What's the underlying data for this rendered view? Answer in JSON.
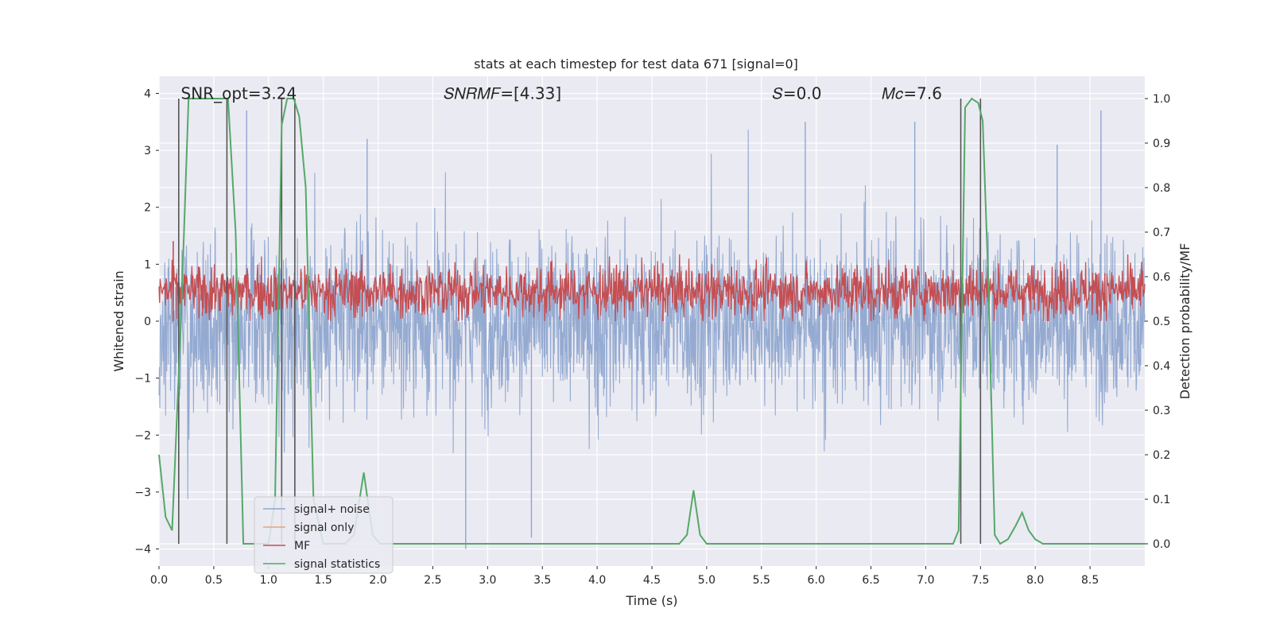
{
  "chart_data": {
    "type": "line",
    "title": "stats at each timestep for test data 671 [signal=0]",
    "xlabel": "Time (s)",
    "ylabel_left": "Whitened strain",
    "ylabel_right": "Detection probability/MF",
    "xlim": [
      0.0,
      9.0
    ],
    "ylim_left": [
      -4.3,
      4.3
    ],
    "ylim_right": [
      -0.05,
      1.05
    ],
    "xticks": [
      0.0,
      0.5,
      1.0,
      1.5,
      2.0,
      2.5,
      3.0,
      3.5,
      4.0,
      4.5,
      5.0,
      5.5,
      6.0,
      6.5,
      7.0,
      7.5,
      8.0,
      8.5
    ],
    "xtick_labels": [
      "0.0",
      "0.5",
      "1.0",
      "1.5",
      "2.0",
      "2.5",
      "3.0",
      "3.5",
      "4.0",
      "4.5",
      "5.0",
      "5.5",
      "6.0",
      "6.5",
      "7.0",
      "7.5",
      "8.0",
      "8.5"
    ],
    "yticks_left": [
      4,
      3,
      2,
      1,
      0,
      -1,
      -2,
      -3,
      -4
    ],
    "ytick_labels_left": [
      "4",
      "3",
      "2",
      "1",
      "0",
      "−1",
      "−2",
      "−3",
      "−4"
    ],
    "yticks_right": [
      1.0,
      0.9,
      0.8,
      0.7,
      0.6,
      0.5,
      0.4,
      0.3,
      0.2,
      0.1,
      0.0
    ],
    "ytick_labels_right": [
      "1.0",
      "0.9",
      "0.8",
      "0.7",
      "0.6",
      "0.5",
      "0.4",
      "0.3",
      "0.2",
      "0.1",
      "0.0"
    ],
    "grid": true,
    "legend_position": "bottom-left",
    "annotations": [
      {
        "text": "SNR_opt=3.24",
        "x": 0.2,
        "y": 4.0
      },
      {
        "text": "𝑆𝑁𝑅𝑀𝐹=[4.33]",
        "x": 2.6,
        "y": 4.0
      },
      {
        "text": "𝑆=0.0",
        "x": 5.6,
        "y": 4.0
      },
      {
        "text": "𝑀𝑐=7.6",
        "x": 6.6,
        "y": 4.0
      }
    ],
    "series": [
      {
        "name": "signal+ noise",
        "color": "#8fa6cf",
        "axis": "left",
        "kind": "noise",
        "description_range": [
          -3.2,
          3.3
        ],
        "peaks": [
          {
            "x": 0.8,
            "y": 3.7
          },
          {
            "x": 1.9,
            "y": 3.2
          },
          {
            "x": 2.8,
            "y": -4.0
          },
          {
            "x": 3.4,
            "y": -3.8
          },
          {
            "x": 5.9,
            "y": 3.5
          },
          {
            "x": 6.9,
            "y": 3.5
          },
          {
            "x": 8.2,
            "y": 3.1
          },
          {
            "x": 8.6,
            "y": 3.7
          }
        ]
      },
      {
        "name": "signal only",
        "color": "#e8a37f",
        "axis": "left",
        "values": []
      },
      {
        "name": "MF",
        "color": "#c44e52",
        "axis": "right",
        "kind": "noise",
        "description_range": [
          0.5,
          0.65
        ],
        "peaks": [
          {
            "x": 0.13,
            "y": 0.68
          },
          {
            "x": 4.6,
            "y": 0.63
          },
          {
            "x": 6.5,
            "y": 0.62
          },
          {
            "x": 7.32,
            "y": 0.6
          }
        ]
      },
      {
        "name": "signal statistics",
        "color": "#55a868",
        "axis": "right",
        "x": [
          0.0,
          0.06,
          0.12,
          0.2,
          0.27,
          0.34,
          0.42,
          0.5,
          0.57,
          0.63,
          0.7,
          0.77,
          0.84,
          0.92,
          1.0,
          1.06,
          1.12,
          1.17,
          1.23,
          1.28,
          1.34,
          1.41,
          1.5,
          1.6,
          1.7,
          1.78,
          1.87,
          1.95,
          2.02,
          2.1,
          2.5,
          3.0,
          3.5,
          4.0,
          4.5,
          4.75,
          4.82,
          4.88,
          4.94,
          5.0,
          5.5,
          6.0,
          6.5,
          7.0,
          7.25,
          7.3,
          7.36,
          7.42,
          7.48,
          7.52,
          7.57,
          7.63,
          7.68,
          7.75,
          7.82,
          7.88,
          7.94,
          8.0,
          8.07,
          8.15,
          8.5,
          9.0
        ],
        "y": [
          0.2,
          0.06,
          0.03,
          0.5,
          1.0,
          1.0,
          1.0,
          1.0,
          1.0,
          1.0,
          0.7,
          0.0,
          0.0,
          0.0,
          0.0,
          0.1,
          0.94,
          1.0,
          1.0,
          0.96,
          0.8,
          0.1,
          0.0,
          0.0,
          0.0,
          0.02,
          0.16,
          0.02,
          0.0,
          0.0,
          0.0,
          0.0,
          0.0,
          0.0,
          0.0,
          0.0,
          0.02,
          0.12,
          0.02,
          0.0,
          0.0,
          0.0,
          0.0,
          0.0,
          0.0,
          0.03,
          0.98,
          1.0,
          0.99,
          0.95,
          0.6,
          0.02,
          0.0,
          0.01,
          0.04,
          0.07,
          0.03,
          0.01,
          0.0,
          0.0,
          0.0,
          0.0
        ]
      }
    ],
    "vertical_lines": [
      {
        "x": 0.18,
        "color": "#555555"
      },
      {
        "x": 0.62,
        "color": "#555555"
      },
      {
        "x": 1.12,
        "color": "#555555"
      },
      {
        "x": 1.24,
        "color": "#555555"
      },
      {
        "x": 7.32,
        "color": "#555555"
      },
      {
        "x": 7.5,
        "color": "#555555"
      }
    ]
  },
  "colors": {
    "plot_bg": "#eaeaf2",
    "grid": "#ffffff",
    "vline": "#555555"
  }
}
